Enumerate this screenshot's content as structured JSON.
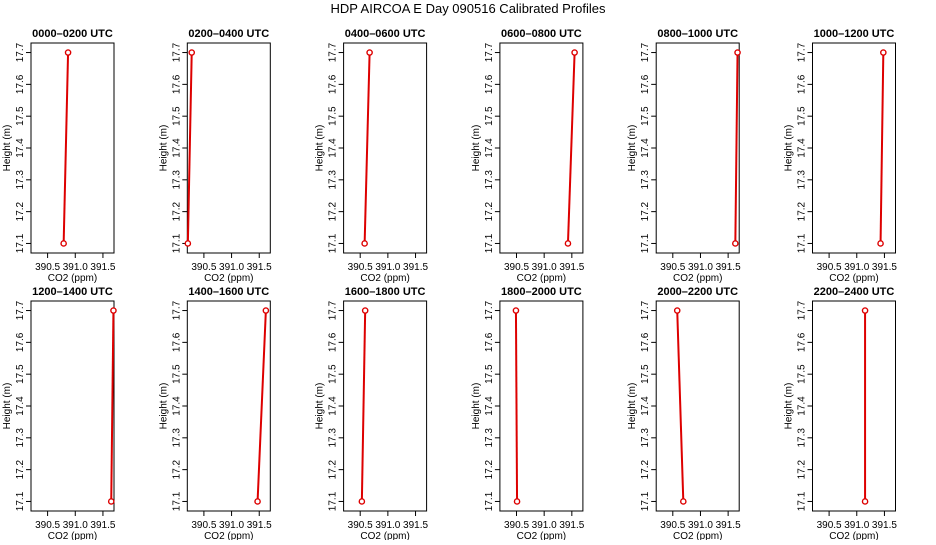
{
  "title": "HDP AIRCOA E  Day 090516  Calibrated Profiles",
  "style": {
    "line_color": "#dd0000",
    "axis_color": "#000000"
  },
  "chart_data": [
    {
      "type": "line",
      "title": "0000–0200 UTC",
      "xlabel": "CO2 (ppm)",
      "ylabel": "Height (m)",
      "xlim": [
        390.2,
        391.7
      ],
      "ylim": [
        17.07,
        17.73
      ],
      "xticks": [
        390.5,
        391.0,
        391.5
      ],
      "xtick_labels": [
        "390.5",
        "391.0",
        "391.5"
      ],
      "yticks": [
        17.1,
        17.2,
        17.3,
        17.4,
        17.5,
        17.6,
        17.7
      ],
      "ytick_labels": [
        "17.1",
        "17.2",
        "17.3",
        "17.4",
        "17.5",
        "17.6",
        "17.7"
      ],
      "series": [
        {
          "x": [
            390.79,
            390.87
          ],
          "y": [
            17.1,
            17.7
          ]
        }
      ]
    },
    {
      "type": "line",
      "title": "0200–0400 UTC",
      "xlabel": "CO2 (ppm)",
      "ylabel": "Height (m)",
      "xlim": [
        390.2,
        391.7
      ],
      "ylim": [
        17.07,
        17.73
      ],
      "xticks": [
        390.5,
        391.0,
        391.5
      ],
      "xtick_labels": [
        "390.5",
        "391.0",
        "391.5"
      ],
      "yticks": [
        17.1,
        17.2,
        17.3,
        17.4,
        17.5,
        17.6,
        17.7
      ],
      "ytick_labels": [
        "17.1",
        "17.2",
        "17.3",
        "17.4",
        "17.5",
        "17.6",
        "17.7"
      ],
      "series": [
        {
          "x": [
            390.21,
            390.28
          ],
          "y": [
            17.1,
            17.7
          ]
        }
      ]
    },
    {
      "type": "line",
      "title": "0400–0600 UTC",
      "xlabel": "CO2 (ppm)",
      "ylabel": "Height (m)",
      "xlim": [
        390.2,
        391.7
      ],
      "ylim": [
        17.07,
        17.73
      ],
      "xticks": [
        390.5,
        391.0,
        391.5
      ],
      "xtick_labels": [
        "390.5",
        "391.0",
        "391.5"
      ],
      "yticks": [
        17.1,
        17.2,
        17.3,
        17.4,
        17.5,
        17.6,
        17.7
      ],
      "ytick_labels": [
        "17.1",
        "17.2",
        "17.3",
        "17.4",
        "17.5",
        "17.6",
        "17.7"
      ],
      "series": [
        {
          "x": [
            390.58,
            390.67
          ],
          "y": [
            17.1,
            17.7
          ]
        }
      ]
    },
    {
      "type": "line",
      "title": "0600–0800 UTC",
      "xlabel": "CO2 (ppm)",
      "ylabel": "Height (m)",
      "xlim": [
        390.2,
        391.7
      ],
      "ylim": [
        17.07,
        17.73
      ],
      "xticks": [
        390.5,
        391.0,
        391.5
      ],
      "xtick_labels": [
        "390.5",
        "391.0",
        "391.5"
      ],
      "yticks": [
        17.1,
        17.2,
        17.3,
        17.4,
        17.5,
        17.6,
        17.7
      ],
      "ytick_labels": [
        "17.1",
        "17.2",
        "17.3",
        "17.4",
        "17.5",
        "17.6",
        "17.7"
      ],
      "series": [
        {
          "x": [
            391.43,
            391.55
          ],
          "y": [
            17.1,
            17.7
          ]
        }
      ]
    },
    {
      "type": "line",
      "title": "0800–1000 UTC",
      "xlabel": "CO2 (ppm)",
      "ylabel": "Height (m)",
      "xlim": [
        390.2,
        391.7
      ],
      "ylim": [
        17.07,
        17.73
      ],
      "xticks": [
        390.5,
        391.0,
        391.5
      ],
      "xtick_labels": [
        "390.5",
        "391.0",
        "391.5"
      ],
      "yticks": [
        17.1,
        17.2,
        17.3,
        17.4,
        17.5,
        17.6,
        17.7
      ],
      "ytick_labels": [
        "17.1",
        "17.2",
        "17.3",
        "17.4",
        "17.5",
        "17.6",
        "17.7"
      ],
      "series": [
        {
          "x": [
            391.63,
            391.67
          ],
          "y": [
            17.1,
            17.7
          ]
        }
      ]
    },
    {
      "type": "line",
      "title": "1000–1200 UTC",
      "xlabel": "CO2 (ppm)",
      "ylabel": "Height (m)",
      "xlim": [
        390.2,
        391.7
      ],
      "ylim": [
        17.07,
        17.73
      ],
      "xticks": [
        390.5,
        391.0,
        391.5
      ],
      "xtick_labels": [
        "390.5",
        "391.0",
        "391.5"
      ],
      "yticks": [
        17.1,
        17.2,
        17.3,
        17.4,
        17.5,
        17.6,
        17.7
      ],
      "ytick_labels": [
        "17.1",
        "17.2",
        "17.3",
        "17.4",
        "17.5",
        "17.6",
        "17.7"
      ],
      "series": [
        {
          "x": [
            391.43,
            391.48
          ],
          "y": [
            17.1,
            17.7
          ]
        }
      ]
    },
    {
      "type": "line",
      "title": "1200–1400 UTC",
      "xlabel": "CO2 (ppm)",
      "ylabel": "Height (m)",
      "xlim": [
        390.2,
        391.7
      ],
      "ylim": [
        17.07,
        17.73
      ],
      "xticks": [
        390.5,
        391.0,
        391.5
      ],
      "xtick_labels": [
        "390.5",
        "391.0",
        "391.5"
      ],
      "yticks": [
        17.1,
        17.2,
        17.3,
        17.4,
        17.5,
        17.6,
        17.7
      ],
      "ytick_labels": [
        "17.1",
        "17.2",
        "17.3",
        "17.4",
        "17.5",
        "17.6",
        "17.7"
      ],
      "series": [
        {
          "x": [
            391.65,
            391.69
          ],
          "y": [
            17.1,
            17.7
          ]
        }
      ]
    },
    {
      "type": "line",
      "title": "1400–1600 UTC",
      "xlabel": "CO2 (ppm)",
      "ylabel": "Height (m)",
      "xlim": [
        390.2,
        391.7
      ],
      "ylim": [
        17.07,
        17.73
      ],
      "xticks": [
        390.5,
        391.0,
        391.5
      ],
      "xtick_labels": [
        "390.5",
        "391.0",
        "391.5"
      ],
      "yticks": [
        17.1,
        17.2,
        17.3,
        17.4,
        17.5,
        17.6,
        17.7
      ],
      "ytick_labels": [
        "17.1",
        "17.2",
        "17.3",
        "17.4",
        "17.5",
        "17.6",
        "17.7"
      ],
      "series": [
        {
          "x": [
            391.47,
            391.62
          ],
          "y": [
            17.1,
            17.7
          ]
        }
      ]
    },
    {
      "type": "line",
      "title": "1600–1800 UTC",
      "xlabel": "CO2 (ppm)",
      "ylabel": "Height (m)",
      "xlim": [
        390.2,
        391.7
      ],
      "ylim": [
        17.07,
        17.73
      ],
      "xticks": [
        390.5,
        391.0,
        391.5
      ],
      "xtick_labels": [
        "390.5",
        "391.0",
        "391.5"
      ],
      "yticks": [
        17.1,
        17.2,
        17.3,
        17.4,
        17.5,
        17.6,
        17.7
      ],
      "ytick_labels": [
        "17.1",
        "17.2",
        "17.3",
        "17.4",
        "17.5",
        "17.6",
        "17.7"
      ],
      "series": [
        {
          "x": [
            390.53,
            390.59
          ],
          "y": [
            17.1,
            17.7
          ]
        }
      ]
    },
    {
      "type": "line",
      "title": "1800–2000 UTC",
      "xlabel": "CO2 (ppm)",
      "ylabel": "Height (m)",
      "xlim": [
        390.2,
        391.7
      ],
      "ylim": [
        17.07,
        17.73
      ],
      "xticks": [
        390.5,
        391.0,
        391.5
      ],
      "xtick_labels": [
        "390.5",
        "391.0",
        "391.5"
      ],
      "yticks": [
        17.1,
        17.2,
        17.3,
        17.4,
        17.5,
        17.6,
        17.7
      ],
      "ytick_labels": [
        "17.1",
        "17.2",
        "17.3",
        "17.4",
        "17.5",
        "17.6",
        "17.7"
      ],
      "series": [
        {
          "x": [
            390.51,
            390.49
          ],
          "y": [
            17.1,
            17.7
          ]
        }
      ]
    },
    {
      "type": "line",
      "title": "2000–2200 UTC",
      "xlabel": "CO2 (ppm)",
      "ylabel": "Height (m)",
      "xlim": [
        390.2,
        391.7
      ],
      "ylim": [
        17.07,
        17.73
      ],
      "xticks": [
        390.5,
        391.0,
        391.5
      ],
      "xtick_labels": [
        "390.5",
        "391.0",
        "391.5"
      ],
      "yticks": [
        17.1,
        17.2,
        17.3,
        17.4,
        17.5,
        17.6,
        17.7
      ],
      "ytick_labels": [
        "17.1",
        "17.2",
        "17.3",
        "17.4",
        "17.5",
        "17.6",
        "17.7"
      ],
      "series": [
        {
          "x": [
            390.69,
            390.58
          ],
          "y": [
            17.1,
            17.7
          ]
        }
      ]
    },
    {
      "type": "line",
      "title": "2200–2400 UTC",
      "xlabel": "CO2 (ppm)",
      "ylabel": "Height (m)",
      "xlim": [
        390.2,
        391.7
      ],
      "ylim": [
        17.07,
        17.73
      ],
      "xticks": [
        390.5,
        391.0,
        391.5
      ],
      "xtick_labels": [
        "390.5",
        "391.0",
        "391.5"
      ],
      "yticks": [
        17.1,
        17.2,
        17.3,
        17.4,
        17.5,
        17.6,
        17.7
      ],
      "ytick_labels": [
        "17.1",
        "17.2",
        "17.3",
        "17.4",
        "17.5",
        "17.6",
        "17.7"
      ],
      "series": [
        {
          "x": [
            391.15,
            391.15
          ],
          "y": [
            17.1,
            17.7
          ]
        }
      ]
    }
  ]
}
